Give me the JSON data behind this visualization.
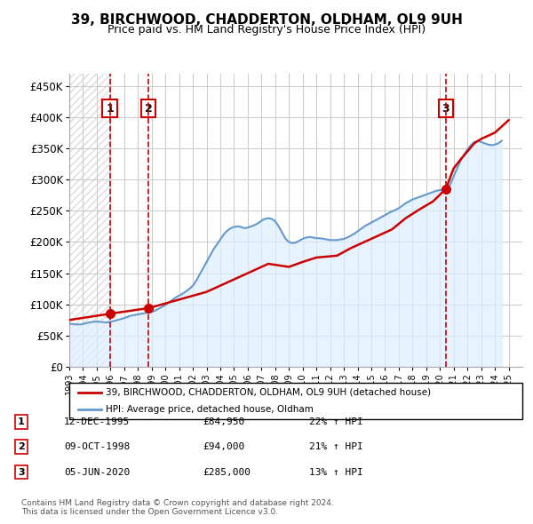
{
  "title": "39, BIRCHWOOD, CHADDERTON, OLDHAM, OL9 9UH",
  "subtitle": "Price paid vs. HM Land Registry's House Price Index (HPI)",
  "ylabel_ticks": [
    "£0",
    "£50K",
    "£100K",
    "£150K",
    "£200K",
    "£250K",
    "£300K",
    "£350K",
    "£400K",
    "£450K"
  ],
  "ylim": [
    0,
    470000
  ],
  "xlim_start": 1993,
  "xlim_end": 2026,
  "sale_color": "#cc0000",
  "hpi_color": "#6699cc",
  "hpi_fill_color": "#ddeeff",
  "sale_points": [
    {
      "date": 1995.95,
      "price": 84950,
      "label": "1"
    },
    {
      "date": 1998.78,
      "price": 94000,
      "label": "2"
    },
    {
      "date": 2020.43,
      "price": 285000,
      "label": "3"
    }
  ],
  "vline_dates": [
    1995.95,
    1998.78,
    2020.43
  ],
  "legend_sale_label": "39, BIRCHWOOD, CHADDERTON, OLDHAM, OL9 9UH (detached house)",
  "legend_hpi_label": "HPI: Average price, detached house, Oldham",
  "table_rows": [
    {
      "num": "1",
      "date": "12-DEC-1995",
      "price": "£84,950",
      "change": "22% ↑ HPI"
    },
    {
      "num": "2",
      "date": "09-OCT-1998",
      "price": "£94,000",
      "change": "21% ↑ HPI"
    },
    {
      "num": "3",
      "date": "05-JUN-2020",
      "price": "£285,000",
      "change": "13% ↑ HPI"
    }
  ],
  "footer": "Contains HM Land Registry data © Crown copyright and database right 2024.\nThis data is licensed under the Open Government Licence v3.0.",
  "hpi_data": {
    "years": [
      1993.0,
      1993.25,
      1993.5,
      1993.75,
      1994.0,
      1994.25,
      1994.5,
      1994.75,
      1995.0,
      1995.25,
      1995.5,
      1995.75,
      1996.0,
      1996.25,
      1996.5,
      1996.75,
      1997.0,
      1997.25,
      1997.5,
      1997.75,
      1998.0,
      1998.25,
      1998.5,
      1998.75,
      1999.0,
      1999.25,
      1999.5,
      1999.75,
      2000.0,
      2000.25,
      2000.5,
      2000.75,
      2001.0,
      2001.25,
      2001.5,
      2001.75,
      2002.0,
      2002.25,
      2002.5,
      2002.75,
      2003.0,
      2003.25,
      2003.5,
      2003.75,
      2004.0,
      2004.25,
      2004.5,
      2004.75,
      2005.0,
      2005.25,
      2005.5,
      2005.75,
      2006.0,
      2006.25,
      2006.5,
      2006.75,
      2007.0,
      2007.25,
      2007.5,
      2007.75,
      2008.0,
      2008.25,
      2008.5,
      2008.75,
      2009.0,
      2009.25,
      2009.5,
      2009.75,
      2010.0,
      2010.25,
      2010.5,
      2010.75,
      2011.0,
      2011.25,
      2011.5,
      2011.75,
      2012.0,
      2012.25,
      2012.5,
      2012.75,
      2013.0,
      2013.25,
      2013.5,
      2013.75,
      2014.0,
      2014.25,
      2014.5,
      2014.75,
      2015.0,
      2015.25,
      2015.5,
      2015.75,
      2016.0,
      2016.25,
      2016.5,
      2016.75,
      2017.0,
      2017.25,
      2017.5,
      2017.75,
      2018.0,
      2018.25,
      2018.5,
      2018.75,
      2019.0,
      2019.25,
      2019.5,
      2019.75,
      2020.0,
      2020.25,
      2020.5,
      2020.75,
      2021.0,
      2021.25,
      2021.5,
      2021.75,
      2022.0,
      2022.25,
      2022.5,
      2022.75,
      2023.0,
      2023.25,
      2023.5,
      2023.75,
      2024.0,
      2024.25,
      2024.5
    ],
    "values": [
      69000,
      68500,
      68000,
      67800,
      68500,
      70000,
      71500,
      72000,
      72500,
      72000,
      71500,
      71000,
      72000,
      73500,
      75000,
      76500,
      78000,
      80000,
      82000,
      83000,
      84000,
      85000,
      86000,
      87000,
      88000,
      90000,
      93000,
      96000,
      99000,
      103000,
      107000,
      111000,
      114000,
      117000,
      121000,
      125000,
      130000,
      138000,
      148000,
      158000,
      168000,
      178000,
      188000,
      196000,
      204000,
      212000,
      218000,
      222000,
      224000,
      225000,
      224000,
      222000,
      223000,
      225000,
      227000,
      230000,
      234000,
      237000,
      238000,
      237000,
      233000,
      225000,
      215000,
      205000,
      200000,
      198000,
      199000,
      202000,
      205000,
      207000,
      208000,
      207000,
      206000,
      206000,
      205000,
      204000,
      203000,
      203000,
      203000,
      204000,
      205000,
      207000,
      210000,
      213000,
      217000,
      221000,
      225000,
      228000,
      231000,
      234000,
      237000,
      240000,
      243000,
      246000,
      249000,
      251000,
      254000,
      258000,
      262000,
      265000,
      268000,
      270000,
      272000,
      274000,
      276000,
      278000,
      280000,
      282000,
      283000,
      284000,
      287000,
      292000,
      305000,
      318000,
      330000,
      340000,
      348000,
      355000,
      360000,
      362000,
      360000,
      358000,
      356000,
      355000,
      356000,
      358000,
      362000
    ]
  },
  "sale_line_data": {
    "years": [
      1993.0,
      1995.95,
      1995.95,
      1998.78,
      1998.78,
      2003.0,
      2005.5,
      2007.5,
      2009.0,
      2010.0,
      2011.0,
      2012.5,
      2013.5,
      2015.0,
      2016.5,
      2017.5,
      2018.5,
      2019.5,
      2020.43,
      2020.43,
      2021.0,
      2021.5,
      2022.0,
      2022.5,
      2023.0,
      2023.5,
      2024.0,
      2024.5,
      2025.0
    ],
    "values": [
      75000,
      84950,
      84950,
      94000,
      94000,
      120000,
      145000,
      165000,
      160000,
      168000,
      175000,
      178000,
      190000,
      205000,
      220000,
      238000,
      252000,
      265000,
      285000,
      285000,
      318000,
      332000,
      345000,
      358000,
      365000,
      370000,
      375000,
      385000,
      395000
    ]
  },
  "background_hatch_color": "#dddddd",
  "grid_color": "#cccccc",
  "box_color": "#cc0000"
}
